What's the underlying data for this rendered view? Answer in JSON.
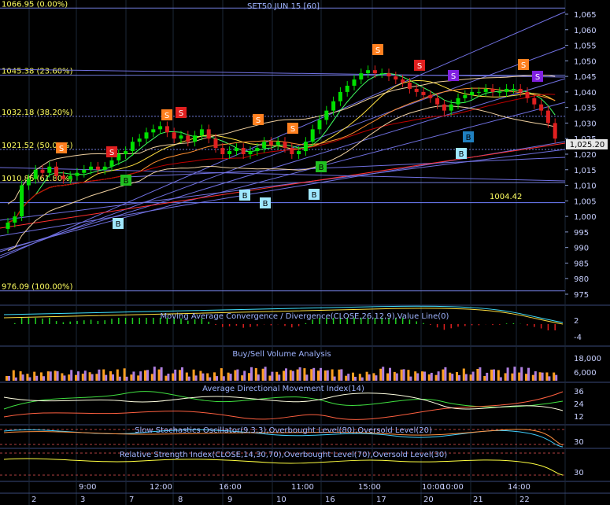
{
  "chart_title": "SET50 JUN 15   [60]",
  "last_price": "1,025.20",
  "annotation_value": "1004.42",
  "fib_levels": [
    {
      "label": "1066.95 (0.00%)",
      "value": 1066.95
    },
    {
      "label": "1045.38 (23.60%)",
      "value": 1045.38
    },
    {
      "label": "1032.18 (38.20%)",
      "value": 1032.18
    },
    {
      "label": "1021.52 (50.00%)",
      "value": 1021.52
    },
    {
      "label": "1010.86 (61.80%)",
      "value": 1010.86
    },
    {
      "label": "976.09 (100.00%)",
      "value": 976.09
    }
  ],
  "price_axis_ticks": [
    "1,065",
    "1,060",
    "1,055",
    "1,050",
    "1,045",
    "1,040",
    "1,035",
    "1,030",
    "1,025",
    "1,020",
    "1,015",
    "1,010",
    "1,005",
    "1,000",
    "995",
    "990",
    "985",
    "980",
    "975"
  ],
  "panels": {
    "macd": {
      "title": "Moving Average Convergence / Divergence(CLOSE,26,12,9),Value Line(0)",
      "ticks": [
        "2",
        "-4"
      ]
    },
    "volume": {
      "title": "Buy/Sell Volume Analysis",
      "ticks": [
        "18,000",
        "6,000"
      ]
    },
    "adx": {
      "title": "Average Directional Movement Index(14)",
      "ticks": [
        "36",
        "24",
        "12"
      ]
    },
    "stoch": {
      "title": "Slow Stochastics Oscillator(9,3,3),Overbought Level(80),Oversold Level(20)",
      "ticks": [
        "30"
      ]
    },
    "rsi": {
      "title": "Relative Strength Index(CLOSE,14,30,70),Overbought Level(70),Oversold Level(30)",
      "ticks": [
        "30"
      ]
    }
  },
  "time_labels": [
    "9:00",
    "12:00",
    "16:00",
    "10:00",
    "11:00",
    "15:00",
    "10:00",
    "14:00"
  ],
  "date_labels": [
    "2",
    "3",
    "7",
    "8",
    "9",
    "10",
    "16",
    "17",
    "20",
    "21",
    "22"
  ],
  "signals": {
    "buy_labels": "B",
    "sell_labels": "S"
  },
  "colors": {
    "background": "#000000",
    "grid": "#1e2a3a",
    "up_candle": "#00e000",
    "down_candle": "#e02020",
    "title_text": "#9fb4ff",
    "fib_text": "#ffff60",
    "sell_orange": "#ff8020",
    "sell_red": "#e02020",
    "sell_purple": "#8020e0",
    "buy_green": "#20c020",
    "buy_cyan": "#a0e8ff",
    "buy_blue": "#2080c0",
    "volume_buy": "#ffa020",
    "volume_sell": "#b080e0"
  }
}
